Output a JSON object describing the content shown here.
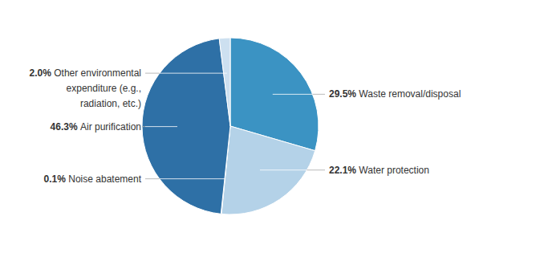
{
  "chart_data": {
    "type": "pie",
    "categories": [
      "Waste removal/disposal",
      "Water protection",
      "Noise abatement",
      "Air purification",
      "Other environmental expenditure (e.g., radiation, etc.)"
    ],
    "values": [
      29.5,
      22.1,
      0.1,
      46.3,
      2.0
    ],
    "value_labels": [
      "29.5%",
      "22.1%",
      "0.1%",
      "46.3%",
      "2.0%"
    ],
    "colors": [
      "#3b93c3",
      "#b4d2e8",
      "#2f78ad",
      "#2e70a6",
      "#cde0f0"
    ],
    "data_labels": true
  }
}
